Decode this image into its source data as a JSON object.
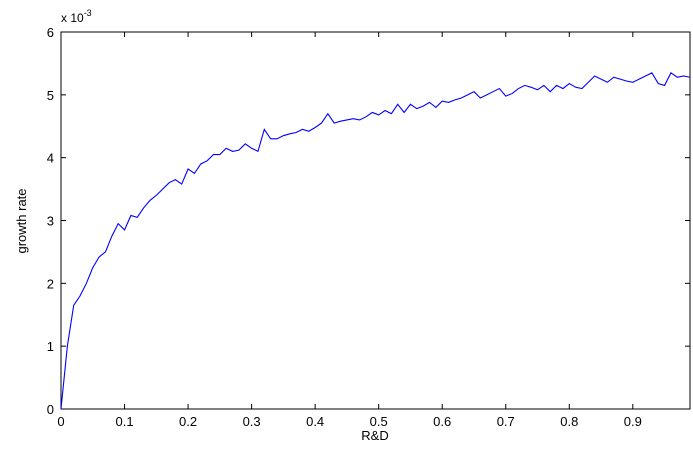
{
  "chart_data": {
    "type": "line",
    "xlabel": "R&D",
    "ylabel": "growth rate",
    "y_exponent_prefix": "x 10",
    "y_exponent_power": "-3",
    "xlim": [
      0,
      0.99
    ],
    "ylim": [
      0,
      6
    ],
    "x_ticks": [
      0,
      0.1,
      0.2,
      0.3,
      0.4,
      0.5,
      0.6,
      0.7,
      0.8,
      0.9
    ],
    "x_tick_labels": [
      "0",
      "0.1",
      "0.2",
      "0.3",
      "0.4",
      "0.5",
      "0.6",
      "0.7",
      "0.8",
      "0.9"
    ],
    "y_ticks": [
      0,
      1,
      2,
      3,
      4,
      5,
      6
    ],
    "y_tick_labels": [
      "0",
      "1",
      "2",
      "3",
      "4",
      "5",
      "6"
    ],
    "grid": false,
    "line_color": "#0000ff",
    "series": [
      {
        "x": [
          0.0,
          0.01,
          0.02,
          0.03,
          0.04,
          0.05,
          0.06,
          0.07,
          0.08,
          0.09,
          0.1,
          0.11,
          0.12,
          0.13,
          0.14,
          0.15,
          0.16,
          0.17,
          0.18,
          0.19,
          0.2,
          0.21,
          0.22,
          0.23,
          0.24,
          0.25,
          0.26,
          0.27,
          0.28,
          0.29,
          0.3,
          0.31,
          0.32,
          0.33,
          0.34,
          0.35,
          0.36,
          0.37,
          0.38,
          0.39,
          0.4,
          0.41,
          0.42,
          0.43,
          0.44,
          0.45,
          0.46,
          0.47,
          0.48,
          0.49,
          0.5,
          0.51,
          0.52,
          0.53,
          0.54,
          0.55,
          0.56,
          0.57,
          0.58,
          0.59,
          0.6,
          0.61,
          0.62,
          0.63,
          0.64,
          0.65,
          0.66,
          0.67,
          0.68,
          0.69,
          0.7,
          0.71,
          0.72,
          0.73,
          0.74,
          0.75,
          0.76,
          0.77,
          0.78,
          0.79,
          0.8,
          0.81,
          0.82,
          0.83,
          0.84,
          0.85,
          0.86,
          0.87,
          0.88,
          0.89,
          0.9,
          0.91,
          0.92,
          0.93,
          0.94,
          0.95,
          0.96,
          0.97,
          0.98,
          0.99
        ],
        "values": [
          0.0,
          1.0,
          1.65,
          1.8,
          2.0,
          2.25,
          2.42,
          2.5,
          2.75,
          2.95,
          2.85,
          3.08,
          3.05,
          3.2,
          3.32,
          3.4,
          3.5,
          3.6,
          3.65,
          3.58,
          3.82,
          3.75,
          3.9,
          3.95,
          4.05,
          4.05,
          4.15,
          4.1,
          4.12,
          4.22,
          4.15,
          4.1,
          4.45,
          4.3,
          4.3,
          4.35,
          4.38,
          4.4,
          4.45,
          4.42,
          4.48,
          4.55,
          4.7,
          4.55,
          4.58,
          4.6,
          4.62,
          4.6,
          4.65,
          4.72,
          4.68,
          4.75,
          4.7,
          4.85,
          4.72,
          4.85,
          4.78,
          4.82,
          4.88,
          4.8,
          4.9,
          4.88,
          4.92,
          4.95,
          5.0,
          5.05,
          4.95,
          5.0,
          5.05,
          5.1,
          4.98,
          5.02,
          5.1,
          5.15,
          5.12,
          5.08,
          5.15,
          5.05,
          5.15,
          5.1,
          5.18,
          5.12,
          5.1,
          5.2,
          5.3,
          5.25,
          5.2,
          5.28,
          5.25,
          5.22,
          5.2,
          5.25,
          5.3,
          5.35,
          5.18,
          5.15,
          5.35,
          5.28,
          5.3,
          5.28
        ]
      }
    ]
  }
}
